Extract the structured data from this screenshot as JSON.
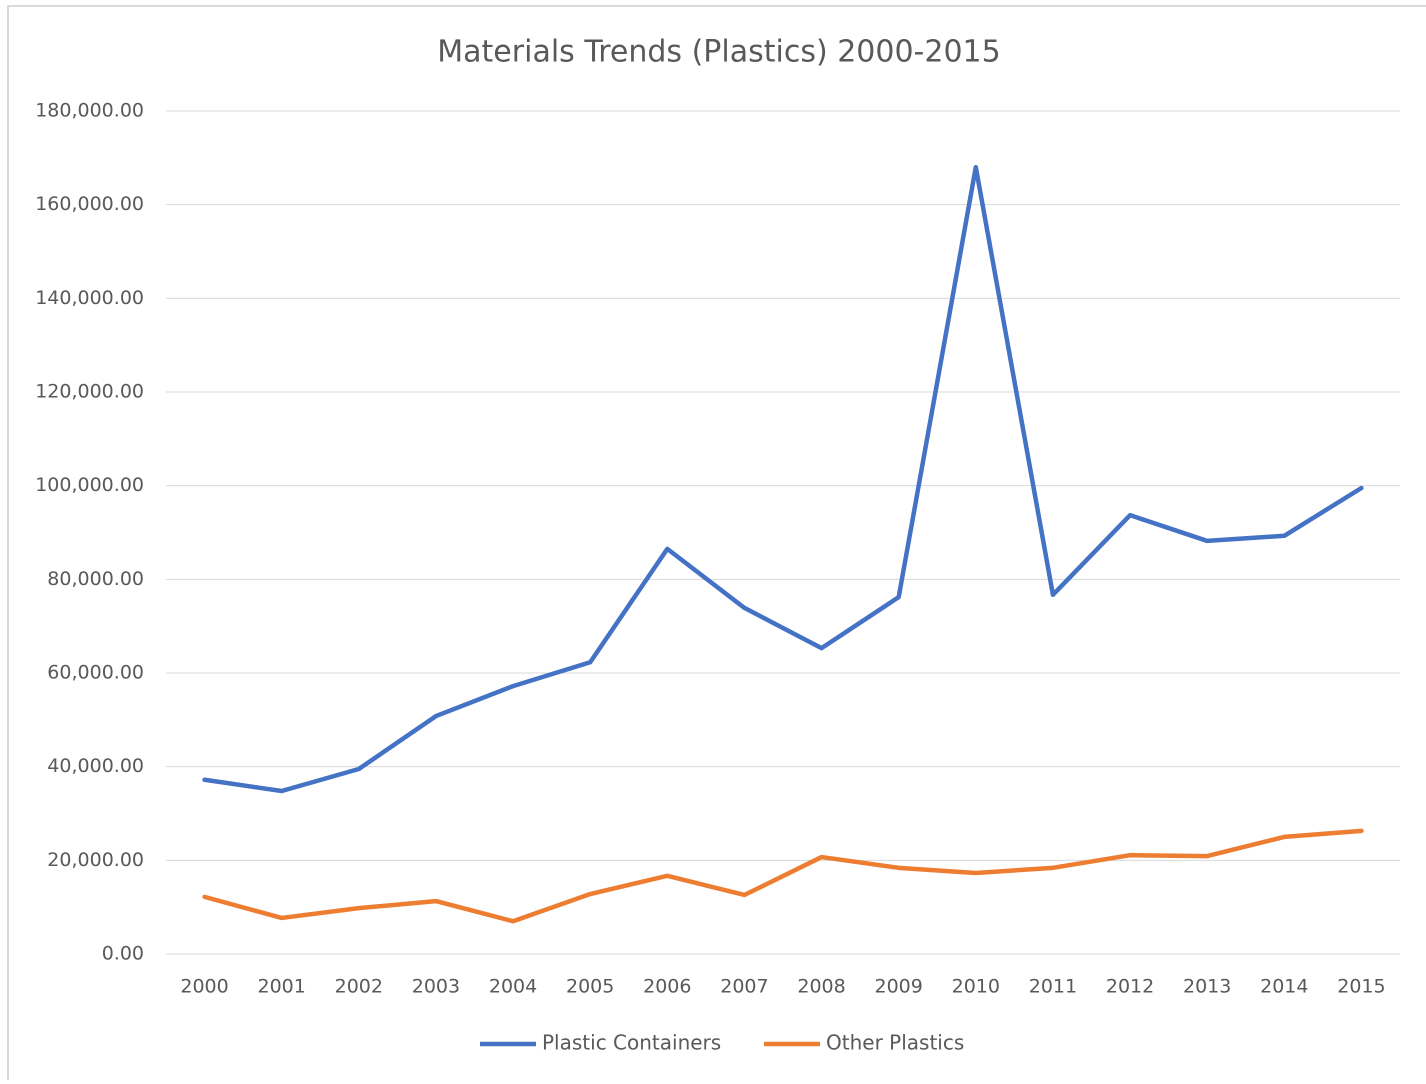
{
  "chart_data": {
    "type": "line",
    "title": "Materials Trends (Plastics) 2000-2015",
    "categories": [
      "2000",
      "2001",
      "2002",
      "2003",
      "2004",
      "2005",
      "2006",
      "2007",
      "2008",
      "2009",
      "2010",
      "2011",
      "2012",
      "2013",
      "2014",
      "2015"
    ],
    "series": [
      {
        "name": "Plastic Containers",
        "color": "#4472c4",
        "values": [
          37200,
          34800,
          39500,
          50800,
          57200,
          62300,
          86500,
          73900,
          65300,
          76200,
          168000,
          76700,
          93700,
          88200,
          89300,
          99500
        ]
      },
      {
        "name": "Other Plastics",
        "color": "#ed7d31",
        "values": [
          12200,
          7700,
          9800,
          11300,
          7000,
          12800,
          16700,
          12600,
          20700,
          18400,
          17300,
          18400,
          21100,
          20900,
          25000,
          26300
        ]
      }
    ],
    "ylim": [
      0,
      180000
    ],
    "yticks": [
      {
        "value": 0,
        "label": "0.00"
      },
      {
        "value": 20000,
        "label": "20,000.00"
      },
      {
        "value": 40000,
        "label": "40,000.00"
      },
      {
        "value": 60000,
        "label": "60,000.00"
      },
      {
        "value": 80000,
        "label": "80,000.00"
      },
      {
        "value": 100000,
        "label": "100,000.00"
      },
      {
        "value": 120000,
        "label": "120,000.00"
      },
      {
        "value": 140000,
        "label": "140,000.00"
      },
      {
        "value": 160000,
        "label": "160,000.00"
      },
      {
        "value": 180000,
        "label": "180,000.00"
      }
    ],
    "grid": true,
    "legend": "bottom"
  }
}
